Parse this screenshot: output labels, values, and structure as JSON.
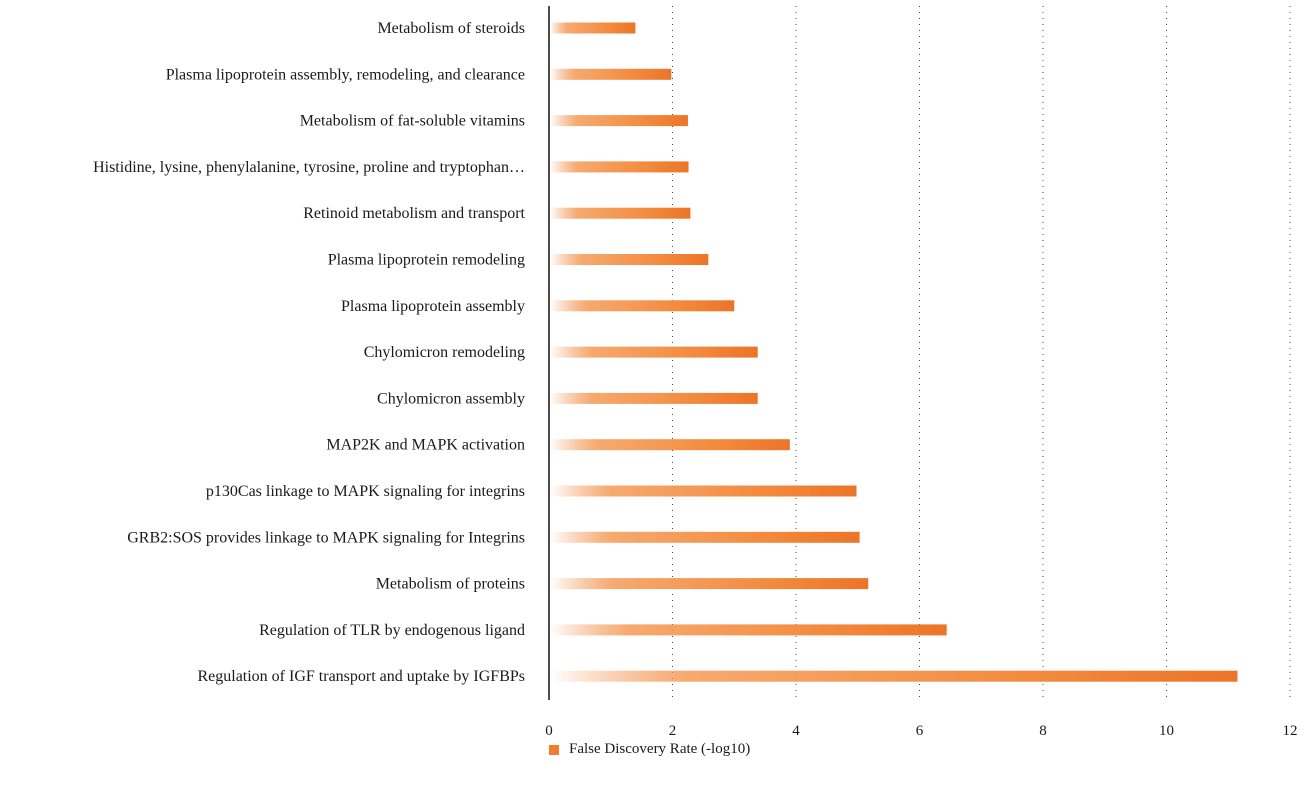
{
  "chart_data": {
    "type": "bar",
    "orientation": "horizontal",
    "categories": [
      "Metabolism of steroids",
      "Plasma lipoprotein assembly, remodeling, and clearance",
      "Metabolism of fat-soluble vitamins",
      "Histidine, lysine, phenylalanine, tyrosine, proline and tryptophan…",
      "Retinoid metabolism and transport",
      "Plasma lipoprotein remodeling",
      "Plasma lipoprotein assembly",
      "Chylomicron remodeling",
      "Chylomicron assembly",
      "MAP2K and MAPK activation",
      "p130Cas linkage to MAPK signaling for integrins",
      "GRB2:SOS provides linkage to MAPK signaling for Integrins",
      "Metabolism of proteins",
      "Regulation of TLR by endogenous ligand",
      "Regulation of IGF transport and uptake by IGFBPs"
    ],
    "series": [
      {
        "name": "False Discovery Rate (-log10)",
        "values": [
          1.4,
          1.98,
          2.25,
          2.26,
          2.29,
          2.58,
          3.0,
          3.38,
          3.38,
          3.9,
          4.98,
          5.03,
          5.17,
          6.44,
          11.15
        ]
      }
    ],
    "xlim": [
      0,
      12
    ],
    "xticks": [
      "0",
      "2",
      "4",
      "6",
      "8",
      "10",
      "12"
    ],
    "grid": "vertical dotted",
    "legend_position": "bottom",
    "bar_color": "#ef7d2c"
  }
}
